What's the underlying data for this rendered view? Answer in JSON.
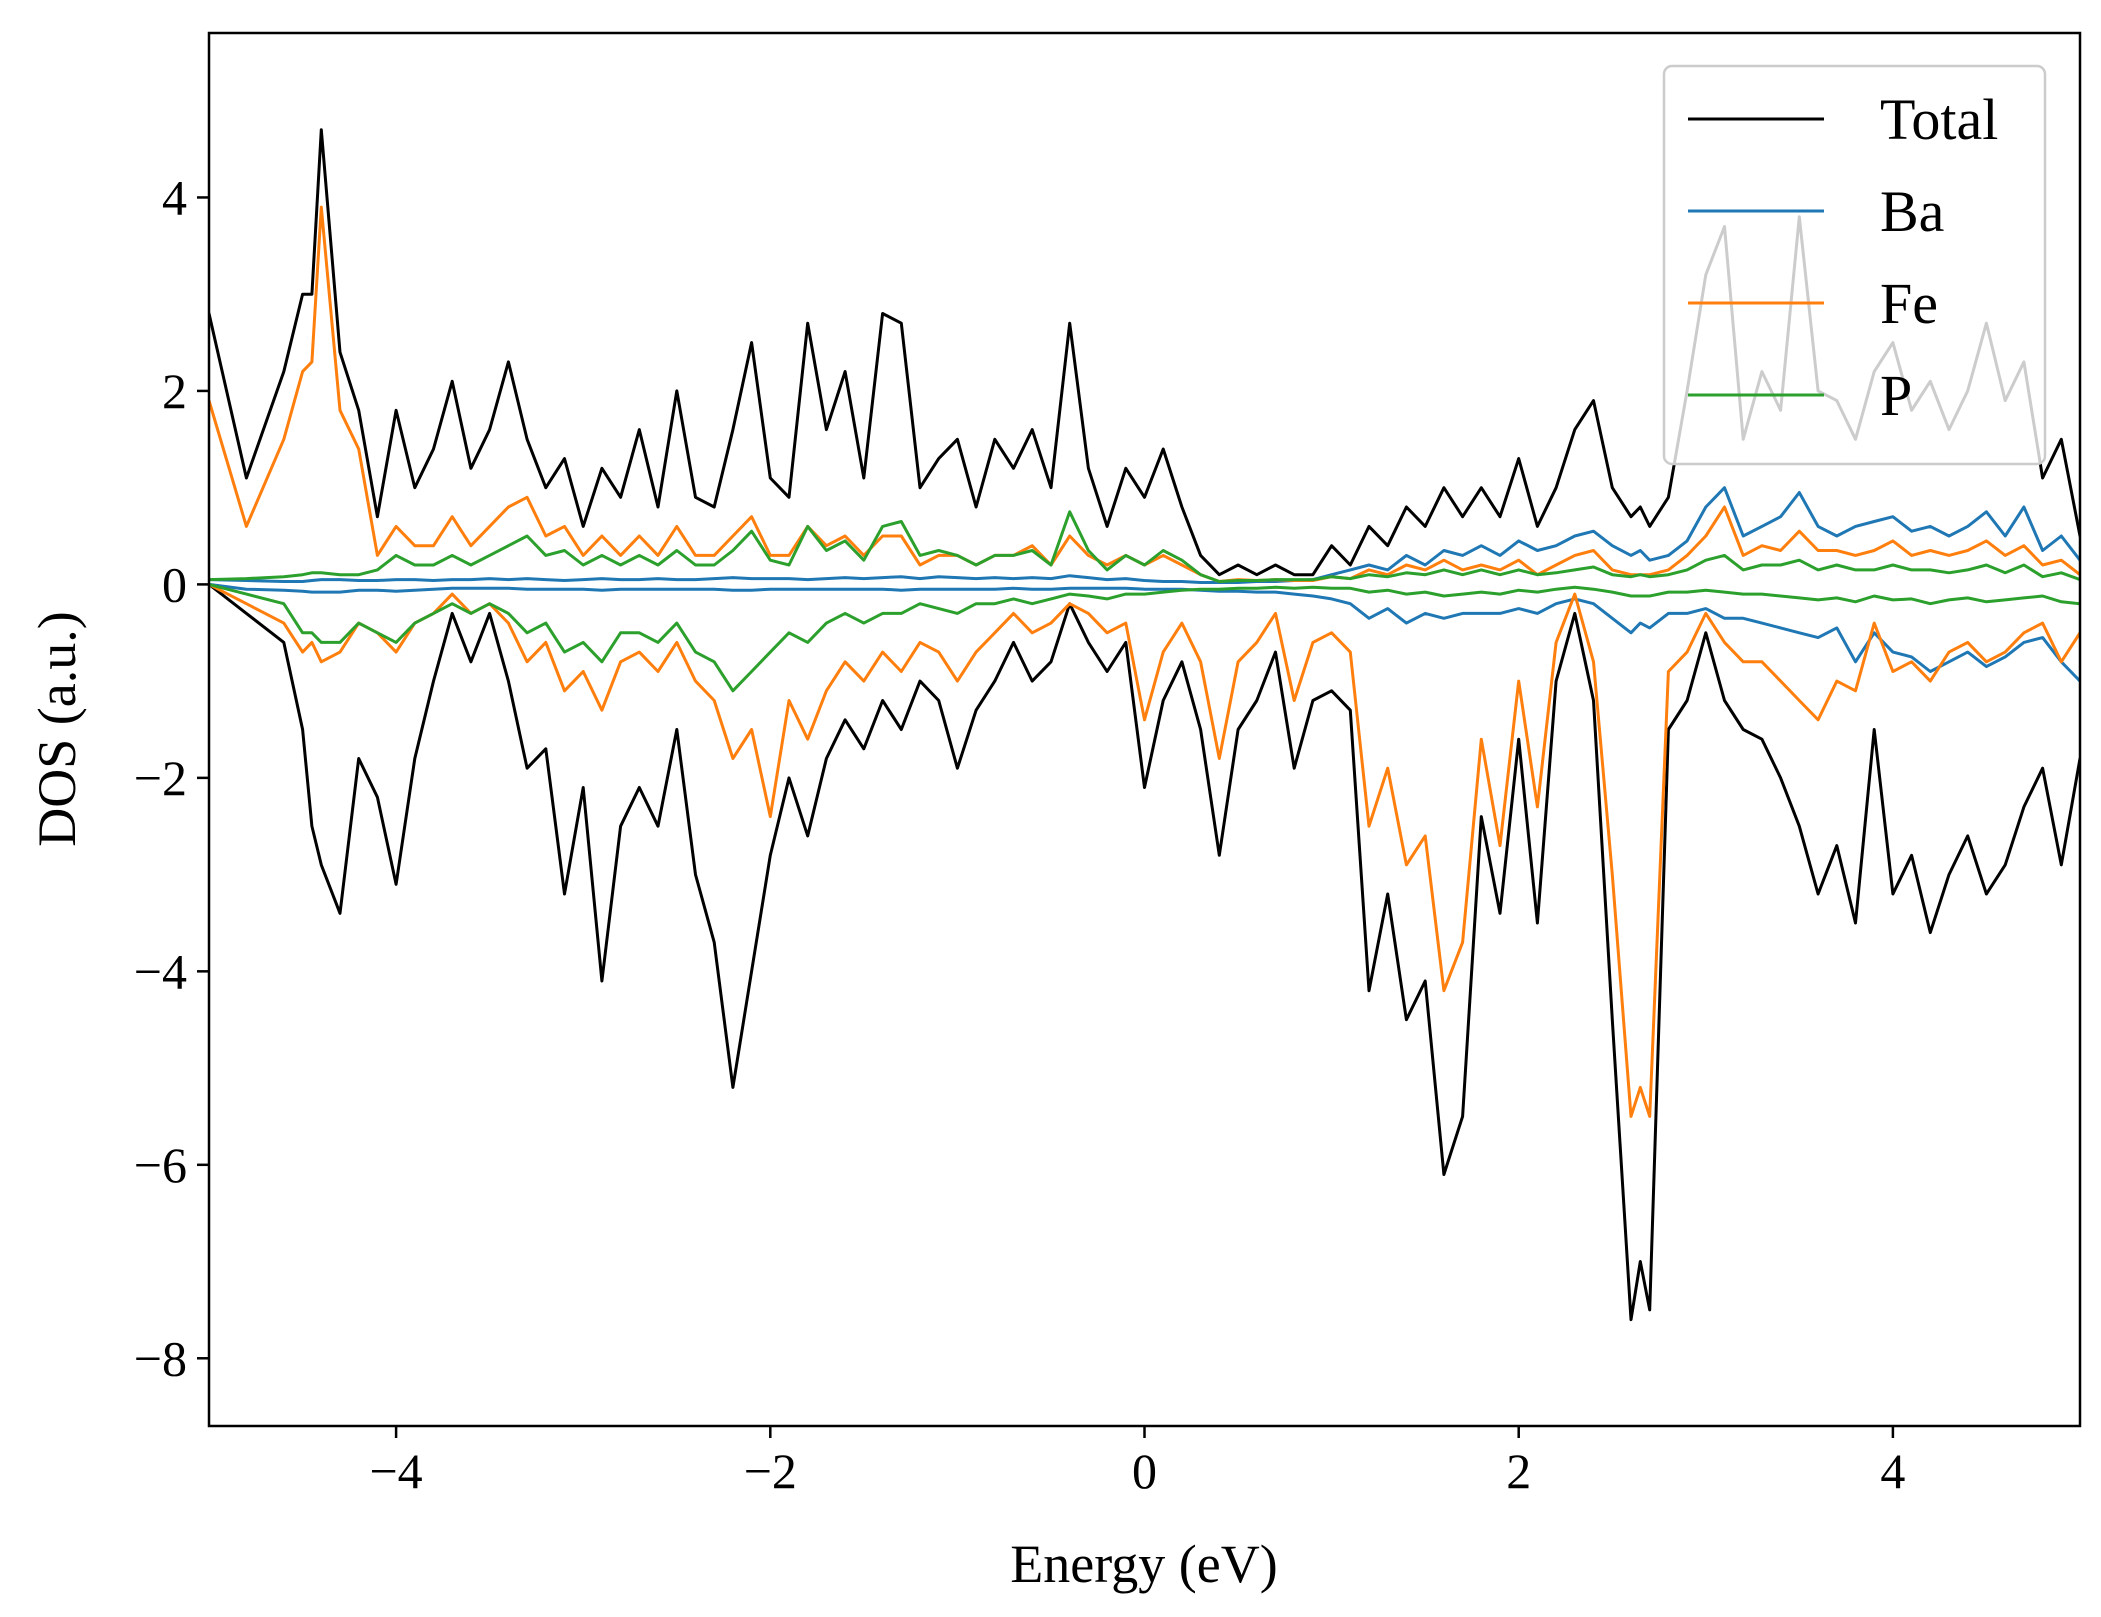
{
  "chart_data": {
    "type": "line",
    "title": "",
    "xlabel": "Energy (eV)",
    "ylabel": "DOS (a.u.)",
    "xlim": [
      -5,
      5
    ],
    "ylim": [
      -8.7,
      5.7
    ],
    "x_ticks": [
      -4,
      -2,
      0,
      2,
      4
    ],
    "y_ticks": [
      4,
      2,
      0,
      -2,
      -4,
      -6,
      -8
    ],
    "x_tick_labels": [
      "−4",
      "−2",
      "0",
      "2",
      "4"
    ],
    "y_tick_labels": [
      "4",
      "2",
      "0",
      "−2",
      "−4",
      "−6",
      "−8"
    ],
    "grid": false,
    "legend": "top-right",
    "x": [
      -5.0,
      -4.8,
      -4.6,
      -4.5,
      -4.45,
      -4.4,
      -4.3,
      -4.2,
      -4.1,
      -4.0,
      -3.9,
      -3.8,
      -3.7,
      -3.6,
      -3.5,
      -3.4,
      -3.3,
      -3.2,
      -3.1,
      -3.0,
      -2.9,
      -2.8,
      -2.7,
      -2.6,
      -2.5,
      -2.4,
      -2.3,
      -2.2,
      -2.1,
      -2.0,
      -1.9,
      -1.8,
      -1.7,
      -1.6,
      -1.5,
      -1.4,
      -1.3,
      -1.2,
      -1.1,
      -1.0,
      -0.9,
      -0.8,
      -0.7,
      -0.6,
      -0.5,
      -0.4,
      -0.3,
      -0.2,
      -0.1,
      0.0,
      0.1,
      0.2,
      0.3,
      0.4,
      0.5,
      0.6,
      0.7,
      0.8,
      0.9,
      1.0,
      1.1,
      1.2,
      1.3,
      1.4,
      1.5,
      1.6,
      1.7,
      1.8,
      1.9,
      2.0,
      2.1,
      2.2,
      2.3,
      2.4,
      2.5,
      2.6,
      2.65,
      2.7,
      2.8,
      2.9,
      3.0,
      3.1,
      3.2,
      3.3,
      3.4,
      3.5,
      3.6,
      3.7,
      3.8,
      3.9,
      4.0,
      4.1,
      4.2,
      4.3,
      4.4,
      4.5,
      4.6,
      4.7,
      4.8,
      4.9,
      5.0
    ],
    "series": [
      {
        "name": "Total",
        "color": "#000000",
        "values": [
          2.8,
          1.1,
          2.2,
          3.0,
          3.0,
          4.7,
          2.4,
          1.8,
          0.7,
          1.8,
          1.0,
          1.4,
          2.1,
          1.2,
          1.6,
          2.3,
          1.5,
          1.0,
          1.3,
          0.6,
          1.2,
          0.9,
          1.6,
          0.8,
          2.0,
          0.9,
          0.8,
          1.6,
          2.5,
          1.1,
          0.9,
          2.7,
          1.6,
          2.2,
          1.1,
          2.8,
          2.7,
          1.0,
          1.3,
          1.5,
          0.8,
          1.5,
          1.2,
          1.6,
          1.0,
          2.7,
          1.2,
          0.6,
          1.2,
          0.9,
          1.4,
          0.8,
          0.3,
          0.1,
          0.2,
          0.1,
          0.2,
          0.1,
          0.1,
          0.4,
          0.2,
          0.6,
          0.4,
          0.8,
          0.6,
          1.0,
          0.7,
          1.0,
          0.7,
          1.3,
          0.6,
          1.0,
          1.6,
          1.9,
          1.0,
          0.7,
          0.8,
          0.6,
          0.9,
          2.0,
          3.2,
          3.7,
          1.5,
          2.2,
          1.8,
          3.8,
          2.0,
          1.9,
          1.5,
          2.2,
          2.5,
          1.8,
          2.1,
          1.6,
          2.0,
          2.7,
          1.9,
          2.3,
          1.1,
          1.5,
          0.5
        ]
      },
      {
        "name": "Total",
        "color": "#000000",
        "values": [
          0.0,
          -0.3,
          -0.6,
          -1.5,
          -2.5,
          -2.9,
          -3.4,
          -1.8,
          -2.2,
          -3.1,
          -1.8,
          -1.0,
          -0.3,
          -0.8,
          -0.3,
          -1.0,
          -1.9,
          -1.7,
          -3.2,
          -2.1,
          -4.1,
          -2.5,
          -2.1,
          -2.5,
          -1.5,
          -3.0,
          -3.7,
          -5.2,
          -4.0,
          -2.8,
          -2.0,
          -2.6,
          -1.8,
          -1.4,
          -1.7,
          -1.2,
          -1.5,
          -1.0,
          -1.2,
          -1.9,
          -1.3,
          -1.0,
          -0.6,
          -1.0,
          -0.8,
          -0.2,
          -0.6,
          -0.9,
          -0.6,
          -2.1,
          -1.2,
          -0.8,
          -1.5,
          -2.8,
          -1.5,
          -1.2,
          -0.7,
          -1.9,
          -1.2,
          -1.1,
          -1.3,
          -4.2,
          -3.2,
          -4.5,
          -4.1,
          -6.1,
          -5.5,
          -2.4,
          -3.4,
          -1.6,
          -3.5,
          -1.0,
          -0.3,
          -1.2,
          -4.5,
          -7.6,
          -7.0,
          -7.5,
          -1.5,
          -1.2,
          -0.5,
          -1.2,
          -1.5,
          -1.6,
          -2.0,
          -2.5,
          -3.2,
          -2.7,
          -3.5,
          -1.5,
          -3.2,
          -2.8,
          -3.6,
          -3.0,
          -2.6,
          -3.2,
          -2.9,
          -2.3,
          -1.9,
          -2.9,
          -1.8
        ]
      },
      {
        "name": "Ba",
        "color": "#1f77b4",
        "values": [
          0.05,
          0.04,
          0.03,
          0.03,
          0.04,
          0.05,
          0.05,
          0.04,
          0.04,
          0.05,
          0.05,
          0.04,
          0.05,
          0.05,
          0.06,
          0.05,
          0.06,
          0.05,
          0.04,
          0.05,
          0.06,
          0.05,
          0.05,
          0.06,
          0.05,
          0.05,
          0.06,
          0.07,
          0.06,
          0.06,
          0.06,
          0.05,
          0.06,
          0.07,
          0.06,
          0.07,
          0.08,
          0.06,
          0.08,
          0.07,
          0.06,
          0.07,
          0.06,
          0.07,
          0.06,
          0.09,
          0.07,
          0.05,
          0.06,
          0.04,
          0.03,
          0.03,
          0.02,
          0.02,
          0.02,
          0.03,
          0.03,
          0.04,
          0.05,
          0.1,
          0.15,
          0.2,
          0.15,
          0.3,
          0.2,
          0.35,
          0.3,
          0.4,
          0.3,
          0.45,
          0.35,
          0.4,
          0.5,
          0.55,
          0.4,
          0.3,
          0.35,
          0.25,
          0.3,
          0.45,
          0.8,
          1.0,
          0.5,
          0.6,
          0.7,
          0.95,
          0.6,
          0.5,
          0.6,
          0.65,
          0.7,
          0.55,
          0.6,
          0.5,
          0.6,
          0.75,
          0.5,
          0.8,
          0.35,
          0.5,
          0.25
        ]
      },
      {
        "name": "Ba",
        "color": "#1f77b4",
        "values": [
          0.0,
          -0.05,
          -0.06,
          -0.07,
          -0.08,
          -0.08,
          -0.08,
          -0.06,
          -0.06,
          -0.07,
          -0.06,
          -0.05,
          -0.04,
          -0.04,
          -0.04,
          -0.04,
          -0.05,
          -0.05,
          -0.05,
          -0.05,
          -0.06,
          -0.05,
          -0.05,
          -0.05,
          -0.05,
          -0.05,
          -0.05,
          -0.06,
          -0.06,
          -0.05,
          -0.05,
          -0.05,
          -0.05,
          -0.05,
          -0.05,
          -0.05,
          -0.06,
          -0.05,
          -0.05,
          -0.05,
          -0.05,
          -0.05,
          -0.04,
          -0.05,
          -0.05,
          -0.04,
          -0.04,
          -0.04,
          -0.04,
          -0.05,
          -0.05,
          -0.05,
          -0.06,
          -0.07,
          -0.07,
          -0.08,
          -0.08,
          -0.1,
          -0.12,
          -0.15,
          -0.2,
          -0.35,
          -0.25,
          -0.4,
          -0.3,
          -0.35,
          -0.3,
          -0.3,
          -0.3,
          -0.25,
          -0.3,
          -0.2,
          -0.15,
          -0.2,
          -0.35,
          -0.5,
          -0.4,
          -0.45,
          -0.3,
          -0.3,
          -0.25,
          -0.35,
          -0.35,
          -0.4,
          -0.45,
          -0.5,
          -0.55,
          -0.45,
          -0.8,
          -0.5,
          -0.7,
          -0.75,
          -0.9,
          -0.8,
          -0.7,
          -0.85,
          -0.75,
          -0.6,
          -0.55,
          -0.8,
          -1.0
        ]
      },
      {
        "name": "Fe",
        "color": "#ff7f0e",
        "values": [
          1.9,
          0.6,
          1.5,
          2.2,
          2.3,
          3.9,
          1.8,
          1.4,
          0.3,
          0.6,
          0.4,
          0.4,
          0.7,
          0.4,
          0.6,
          0.8,
          0.9,
          0.5,
          0.6,
          0.3,
          0.5,
          0.3,
          0.5,
          0.3,
          0.6,
          0.3,
          0.3,
          0.5,
          0.7,
          0.3,
          0.3,
          0.6,
          0.4,
          0.5,
          0.3,
          0.5,
          0.5,
          0.2,
          0.3,
          0.3,
          0.2,
          0.3,
          0.3,
          0.4,
          0.2,
          0.5,
          0.3,
          0.2,
          0.3,
          0.2,
          0.3,
          0.2,
          0.1,
          0.03,
          0.05,
          0.04,
          0.05,
          0.04,
          0.04,
          0.08,
          0.06,
          0.15,
          0.1,
          0.2,
          0.15,
          0.25,
          0.15,
          0.2,
          0.15,
          0.25,
          0.1,
          0.2,
          0.3,
          0.35,
          0.15,
          0.1,
          0.1,
          0.1,
          0.15,
          0.3,
          0.5,
          0.8,
          0.3,
          0.4,
          0.35,
          0.55,
          0.35,
          0.35,
          0.3,
          0.35,
          0.45,
          0.3,
          0.35,
          0.3,
          0.35,
          0.45,
          0.3,
          0.4,
          0.2,
          0.25,
          0.1
        ]
      },
      {
        "name": "Fe",
        "color": "#ff7f0e",
        "values": [
          0.0,
          -0.2,
          -0.4,
          -0.7,
          -0.6,
          -0.8,
          -0.7,
          -0.4,
          -0.5,
          -0.7,
          -0.4,
          -0.3,
          -0.1,
          -0.3,
          -0.2,
          -0.4,
          -0.8,
          -0.6,
          -1.1,
          -0.9,
          -1.3,
          -0.8,
          -0.7,
          -0.9,
          -0.6,
          -1.0,
          -1.2,
          -1.8,
          -1.5,
          -2.4,
          -1.2,
          -1.6,
          -1.1,
          -0.8,
          -1.0,
          -0.7,
          -0.9,
          -0.6,
          -0.7,
          -1.0,
          -0.7,
          -0.5,
          -0.3,
          -0.5,
          -0.4,
          -0.2,
          -0.3,
          -0.5,
          -0.4,
          -1.4,
          -0.7,
          -0.4,
          -0.8,
          -1.8,
          -0.8,
          -0.6,
          -0.3,
          -1.2,
          -0.6,
          -0.5,
          -0.7,
          -2.5,
          -1.9,
          -2.9,
          -2.6,
          -4.2,
          -3.7,
          -1.6,
          -2.7,
          -1.0,
          -2.3,
          -0.6,
          -0.1,
          -0.8,
          -3.0,
          -5.5,
          -5.2,
          -5.5,
          -0.9,
          -0.7,
          -0.3,
          -0.6,
          -0.8,
          -0.8,
          -1.0,
          -1.2,
          -1.4,
          -1.0,
          -1.1,
          -0.4,
          -0.9,
          -0.8,
          -1.0,
          -0.7,
          -0.6,
          -0.8,
          -0.7,
          -0.5,
          -0.4,
          -0.8,
          -0.5
        ]
      },
      {
        "name": "P",
        "color": "#2ca02c",
        "values": [
          0.05,
          0.06,
          0.08,
          0.1,
          0.12,
          0.12,
          0.1,
          0.1,
          0.15,
          0.3,
          0.2,
          0.2,
          0.3,
          0.2,
          0.3,
          0.4,
          0.5,
          0.3,
          0.35,
          0.2,
          0.3,
          0.2,
          0.3,
          0.2,
          0.35,
          0.2,
          0.2,
          0.35,
          0.55,
          0.25,
          0.2,
          0.6,
          0.35,
          0.45,
          0.25,
          0.6,
          0.65,
          0.3,
          0.35,
          0.3,
          0.2,
          0.3,
          0.3,
          0.35,
          0.2,
          0.75,
          0.35,
          0.15,
          0.3,
          0.2,
          0.35,
          0.25,
          0.1,
          0.03,
          0.04,
          0.04,
          0.05,
          0.05,
          0.05,
          0.08,
          0.06,
          0.1,
          0.08,
          0.12,
          0.1,
          0.15,
          0.1,
          0.15,
          0.1,
          0.15,
          0.1,
          0.12,
          0.15,
          0.18,
          0.1,
          0.08,
          0.1,
          0.08,
          0.1,
          0.15,
          0.25,
          0.3,
          0.15,
          0.2,
          0.2,
          0.25,
          0.15,
          0.2,
          0.15,
          0.15,
          0.2,
          0.15,
          0.15,
          0.12,
          0.15,
          0.2,
          0.12,
          0.2,
          0.08,
          0.12,
          0.05
        ]
      },
      {
        "name": "P",
        "color": "#2ca02c",
        "values": [
          0.0,
          -0.1,
          -0.2,
          -0.5,
          -0.5,
          -0.6,
          -0.6,
          -0.4,
          -0.5,
          -0.6,
          -0.4,
          -0.3,
          -0.2,
          -0.3,
          -0.2,
          -0.3,
          -0.5,
          -0.4,
          -0.7,
          -0.6,
          -0.8,
          -0.5,
          -0.5,
          -0.6,
          -0.4,
          -0.7,
          -0.8,
          -1.1,
          -0.9,
          -0.7,
          -0.5,
          -0.6,
          -0.4,
          -0.3,
          -0.4,
          -0.3,
          -0.3,
          -0.2,
          -0.25,
          -0.3,
          -0.2,
          -0.2,
          -0.15,
          -0.2,
          -0.15,
          -0.1,
          -0.12,
          -0.15,
          -0.1,
          -0.1,
          -0.08,
          -0.06,
          -0.05,
          -0.05,
          -0.04,
          -0.04,
          -0.03,
          -0.04,
          -0.03,
          -0.04,
          -0.04,
          -0.08,
          -0.06,
          -0.1,
          -0.08,
          -0.12,
          -0.1,
          -0.08,
          -0.1,
          -0.06,
          -0.08,
          -0.05,
          -0.03,
          -0.05,
          -0.08,
          -0.12,
          -0.12,
          -0.12,
          -0.08,
          -0.08,
          -0.06,
          -0.08,
          -0.1,
          -0.1,
          -0.12,
          -0.14,
          -0.16,
          -0.14,
          -0.18,
          -0.12,
          -0.16,
          -0.15,
          -0.2,
          -0.16,
          -0.14,
          -0.18,
          -0.16,
          -0.14,
          -0.12,
          -0.18,
          -0.2
        ]
      }
    ]
  }
}
